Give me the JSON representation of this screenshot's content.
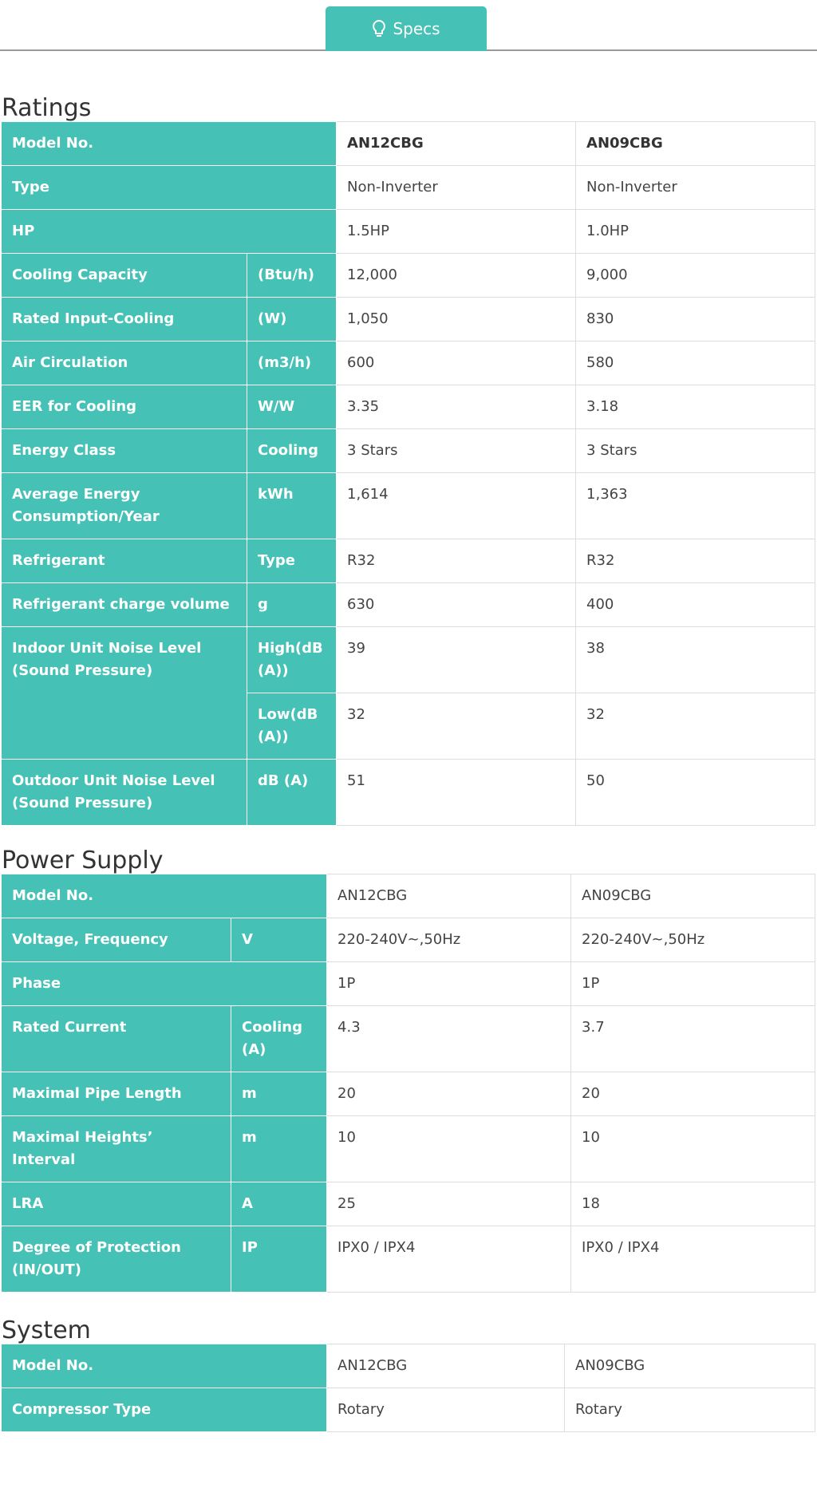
{
  "tab": "Specs",
  "sections": [
    {
      "title": "Ratings",
      "model_values_bold": true,
      "rows": [
        {
          "label": "Model No.",
          "values": [
            "AN12CBG",
            "AN09CBG"
          ]
        },
        {
          "label": "Type",
          "values": [
            "Non-Inverter",
            "Non-Inverter"
          ]
        },
        {
          "label": "HP",
          "values": [
            "1.5HP",
            "1.0HP"
          ]
        },
        {
          "label": "Cooling Capacity",
          "unit": "(Btu/h)",
          "values": [
            "12,000",
            "9,000"
          ]
        },
        {
          "label": "Rated Input-Cooling",
          "unit": "(W)",
          "values": [
            "1,050",
            "830"
          ]
        },
        {
          "label": "Air Circulation",
          "unit": "(m3/h)",
          "values": [
            "600",
            "580"
          ]
        },
        {
          "label": "EER for Cooling",
          "unit": "W/W",
          "values": [
            "3.35",
            "3.18"
          ]
        },
        {
          "label": "Energy Class",
          "unit": "Cooling",
          "values": [
            "3 Stars",
            "3 Stars"
          ]
        },
        {
          "label": "Average Energy Consumption/Year",
          "unit": "kWh",
          "values": [
            "1,614",
            "1,363"
          ]
        },
        {
          "label": "Refrigerant",
          "unit": "Type",
          "values": [
            "R32",
            "R32"
          ]
        },
        {
          "label": "Refrigerant charge volume",
          "unit": "g",
          "values": [
            "630",
            "400"
          ]
        },
        {
          "label": "Indoor Unit Noise Level (Sound Pressure)",
          "sub": [
            {
              "unit": "High(dB (A))",
              "values": [
                "39",
                "38"
              ]
            },
            {
              "unit": "Low(dB (A))",
              "values": [
                "32",
                "32"
              ]
            }
          ]
        },
        {
          "label": "Outdoor Unit Noise Level (Sound Pressure)",
          "unit": "dB (A)",
          "values": [
            "51",
            "50"
          ]
        }
      ]
    },
    {
      "title": "Power Supply",
      "model_values_bold": false,
      "rows": [
        {
          "label": "Model No.",
          "values": [
            "AN12CBG",
            "AN09CBG"
          ]
        },
        {
          "label": "Voltage, Frequency",
          "unit": "V",
          "values": [
            "220-240V~,50Hz",
            "220-240V~,50Hz"
          ]
        },
        {
          "label": "Phase",
          "values": [
            "1P",
            "1P"
          ]
        },
        {
          "label": "Rated Current",
          "unit": "Cooling (A)",
          "values": [
            "4.3",
            "3.7"
          ]
        },
        {
          "label": "Maximal Pipe Length",
          "unit": "m",
          "values": [
            "20",
            "20"
          ]
        },
        {
          "label": "Maximal Heights’ Interval",
          "unit": "m",
          "values": [
            "10",
            "10"
          ]
        },
        {
          "label": "LRA",
          "unit": "A",
          "values": [
            "25",
            "18"
          ]
        },
        {
          "label": "Degree of Protection (IN/OUT)",
          "unit": "IP",
          "values": [
            "IPX0 / IPX4",
            "IPX0 / IPX4"
          ]
        }
      ]
    },
    {
      "title": "System",
      "model_values_bold": false,
      "rows": [
        {
          "label": "Model No.",
          "values": [
            "AN12CBG",
            "AN09CBG"
          ]
        },
        {
          "label": "Compressor Type",
          "values": [
            "Rotary",
            "Rotary"
          ]
        }
      ]
    }
  ]
}
